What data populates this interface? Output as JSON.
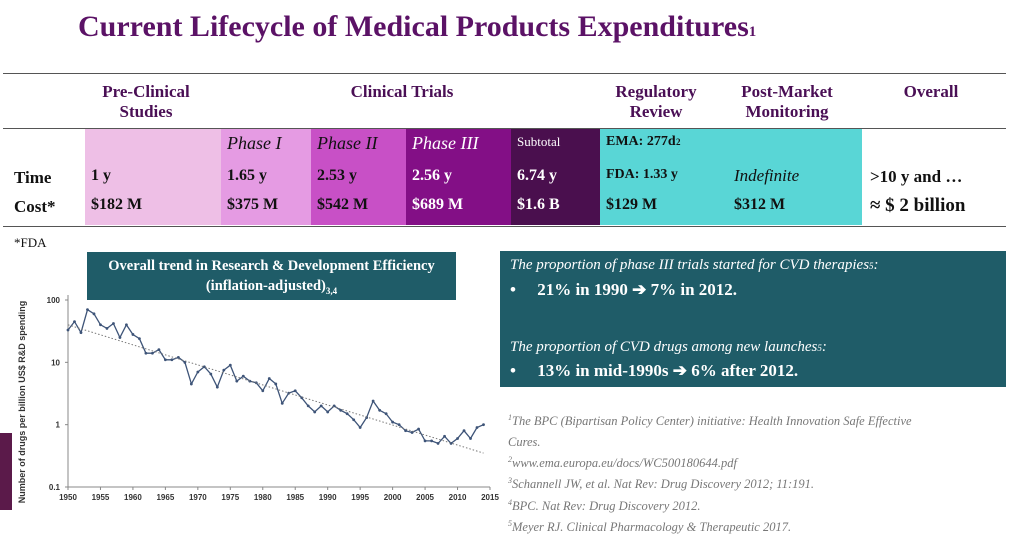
{
  "slide": {
    "title": "Current Lifecycle of Medical Products Expenditures",
    "title_ref": "1"
  },
  "table": {
    "headers": {
      "preclinical": "Pre-Clinical Studies",
      "clinical": "Clinical Trials",
      "regulatory": "Regulatory Review",
      "postmarket": "Post-Market Monitoring",
      "overall": "Overall"
    },
    "row_labels": {
      "time": "Time",
      "cost": "Cost*"
    },
    "columns": [
      {
        "label": "",
        "time": "1 y",
        "cost": "$182 M",
        "color": "#eebfe6"
      },
      {
        "label": "Phase I",
        "time": "1.65 y",
        "cost": "$375 M",
        "color": "#e59be3"
      },
      {
        "label": "Phase II",
        "time": "2.53 y",
        "cost": "$542 M",
        "color": "#c850c6"
      },
      {
        "label": "Phase III",
        "time": "2.56 y",
        "cost": "$689 M",
        "color": "#830f86"
      },
      {
        "label": "Subtotal",
        "time": "6.74 y",
        "cost": "$1.6 B",
        "color": "#4a0f4e"
      },
      {
        "label": "EMA: 277d",
        "label_ref": "2",
        "time": "FDA: 1.33 y",
        "cost": "$129 M",
        "color": "#59d6d6"
      },
      {
        "label": "",
        "time": "Indefinite",
        "cost": "$312 M",
        "color": "#59d6d6"
      },
      {
        "label": "",
        "time": ">10 y and …",
        "cost": "≈ $ 2 billion",
        "color": "#ffffff"
      }
    ],
    "footnote": "*FDA"
  },
  "chart_box_title": "Overall trend in Research & Development Efficiency (inflation-adjusted)",
  "chart_box_refs": "3,4",
  "chart_data": {
    "type": "line",
    "title": "Overall trend in Research & Development Efficiency (inflation-adjusted)",
    "ylabel": "Number of drugs per billion US$ R&D spending",
    "xlabel": "",
    "y_scale": "log",
    "ylim": [
      0.1,
      100
    ],
    "xlim": [
      1950,
      2015
    ],
    "x_ticks": [
      1950,
      1955,
      1960,
      1965,
      1970,
      1975,
      1980,
      1985,
      1990,
      1995,
      2000,
      2005,
      2010,
      2015
    ],
    "y_ticks": [
      {
        "value": 100,
        "label": "100"
      },
      {
        "value": 10,
        "label": "10"
      },
      {
        "value": 1,
        "label": "1"
      },
      {
        "value": 0.1,
        "label": "0.1"
      }
    ],
    "series": [
      {
        "x": [
          1950,
          1951,
          1952,
          1953,
          1954,
          1955,
          1956,
          1957,
          1958,
          1959,
          1960,
          1961,
          1962,
          1963,
          1964,
          1965,
          1966,
          1967,
          1968,
          1969,
          1970,
          1971,
          1972,
          1973,
          1974,
          1975,
          1976,
          1977,
          1978,
          1979,
          1980,
          1981,
          1982,
          1983,
          1984,
          1985,
          1986,
          1987,
          1988,
          1989,
          1990,
          1991,
          1992,
          1993,
          1994,
          1995,
          1996,
          1997,
          1998,
          1999,
          2000,
          2001,
          2002,
          2003,
          2004,
          2005,
          2006,
          2007,
          2008,
          2009,
          2010,
          2011,
          2012,
          2013,
          2014
        ],
        "y": [
          33,
          45,
          30,
          70,
          60,
          40,
          35,
          42,
          25,
          40,
          28,
          24,
          14,
          14,
          16,
          11,
          11,
          12,
          10,
          4.5,
          7,
          8.5,
          6.5,
          4,
          7.5,
          9,
          5,
          6,
          5,
          4.7,
          3.5,
          5.5,
          4.5,
          2.2,
          3.2,
          3.5,
          2.7,
          2,
          1.6,
          2,
          1.6,
          2,
          1.7,
          1.5,
          1.2,
          0.9,
          1.3,
          2.4,
          1.7,
          1.5,
          1.1,
          1,
          0.8,
          0.75,
          0.85,
          0.55,
          0.55,
          0.5,
          0.65,
          0.5,
          0.6,
          0.8,
          0.6,
          0.9,
          1
        ]
      },
      {
        "name": "",
        "x": [
          1950,
          2014
        ],
        "y": [
          40,
          0.35
        ],
        "style": "dotted-trend"
      }
    ]
  },
  "teal_box": {
    "intro1": "The proportion of phase III trials started for CVD therapies",
    "intro1_ref": "5",
    "bullet1": "21% in 1990 ➔ 7% in 2012.",
    "intro2": "The proportion of CVD drugs among new launches",
    "intro2_ref": "5",
    "bullet2": "13% in mid-1990s ➔ 6% after 2012.",
    "bullet_char": "•"
  },
  "references": [
    {
      "num": "1",
      "text": "The BPC (Bipartisan Policy Center) initiative: Health Innovation Safe Effective"
    },
    {
      "num": "",
      "text": "Cures."
    },
    {
      "num": "2",
      "text": "www.ema.europa.eu/docs/WC500180644.pdf"
    },
    {
      "num": "3",
      "text": "Schannell JW, et al. Nat Rev: Drug Discovery 2012; 11:191."
    },
    {
      "num": "4",
      "text": "BPC. Nat Rev: Drug Discovery 2012."
    },
    {
      "num": "5",
      "text": "Meyer RJ. Clinical Pharmacology & Therapeutic 2017."
    }
  ],
  "colors": {
    "title": "#5b1266",
    "teal": "#1f5c68",
    "accent_bar": "#5b1a4a"
  }
}
